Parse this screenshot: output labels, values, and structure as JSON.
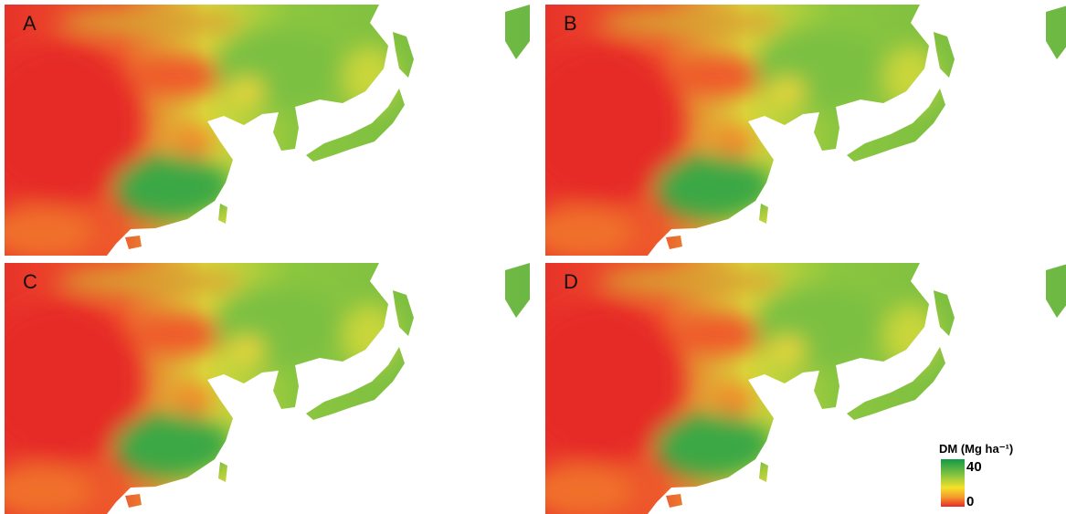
{
  "panels": [
    {
      "label": "A"
    },
    {
      "label": "B"
    },
    {
      "label": "C"
    },
    {
      "label": "D"
    }
  ],
  "legend": {
    "title": "DM (Mg ha⁻¹)",
    "ticks": [
      40,
      0
    ]
  }
}
